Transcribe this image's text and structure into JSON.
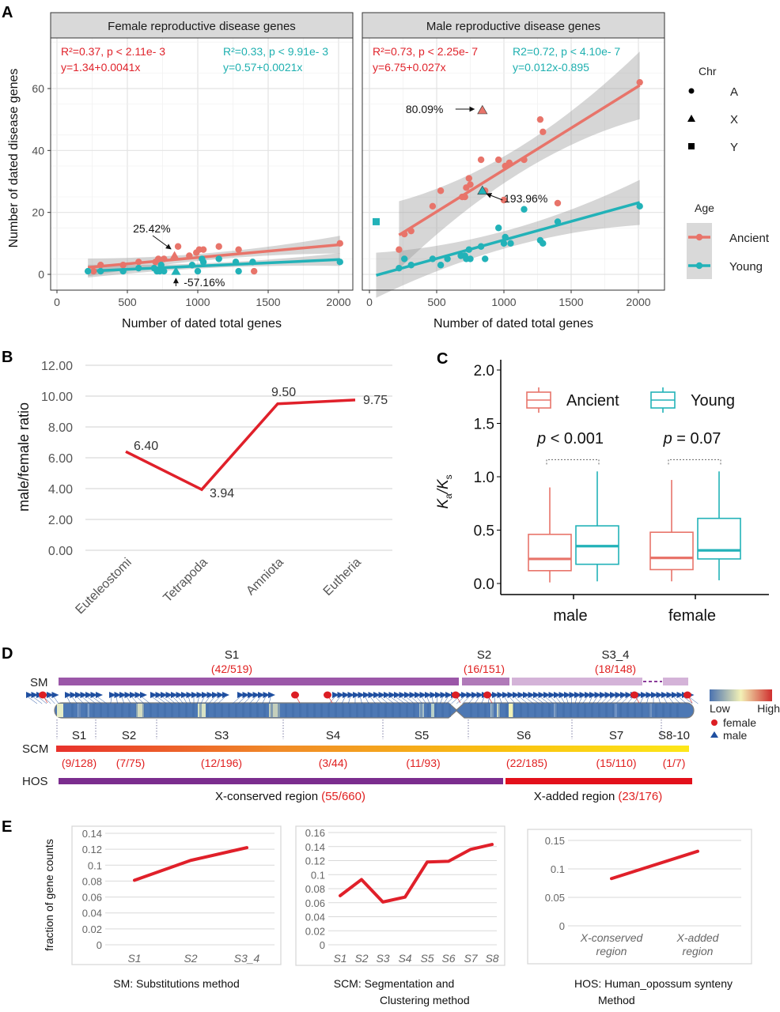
{
  "chart_data": [
    {
      "id": "A",
      "panel_label": "A",
      "type": "scatter",
      "xlabel": "Number of dated total genes",
      "ylabel": "Number of dated disease genes",
      "xlim": [
        0,
        2000
      ],
      "ylim": [
        0,
        60
      ],
      "xticks": [
        "0",
        "500",
        "1000",
        "1500",
        "2000"
      ],
      "yticks": [
        "0",
        "20",
        "40",
        "60"
      ],
      "grid": true,
      "legend": {
        "placement": "right",
        "chr_title": "Chr",
        "chr_items": [
          {
            "label": "A",
            "shape": "circle"
          },
          {
            "label": "X",
            "shape": "triangle"
          },
          {
            "label": "Y",
            "shape": "square"
          }
        ],
        "age_title": "Age",
        "age_items": [
          {
            "label": "Ancient",
            "color": "#e8746a"
          },
          {
            "label": "Young",
            "color": "#22b2b8"
          }
        ]
      },
      "facets": [
        {
          "title": "Female reproductive disease genes",
          "stats": [
            {
              "series": "Ancient",
              "line1": "R²=0.37, p < 2.11e- 3",
              "line2": "y=1.34+0.0041x",
              "color": "#e0242c"
            },
            {
              "series": "Young",
              "line1": "R²=0.33, p < 9.91e- 3",
              "line2": "y=0.57+0.0021x",
              "color": "#1fb0b0"
            }
          ],
          "annotations": [
            {
              "text": "25.42%",
              "target": [
                835,
                6
              ]
            },
            {
              "text": "-57.16%",
              "target": [
                845,
                1
              ]
            }
          ],
          "series": [
            {
              "name": "Ancient",
              "color": "#e8746a",
              "fit": {
                "intercept": 1.34,
                "slope": 0.0041,
                "x": [
                  220,
                  2010
                ]
              },
              "points": [
                [
                  260,
                  1
                ],
                [
                  310,
                  3
                ],
                [
                  470,
                  3
                ],
                [
                  580,
                  4
                ],
                [
                  700,
                  4
                ],
                [
                  720,
                  5
                ],
                [
                  760,
                  5
                ],
                [
                  860,
                  9
                ],
                [
                  940,
                  6
                ],
                [
                  990,
                  7
                ],
                [
                  1010,
                  8
                ],
                [
                  1040,
                  8
                ],
                [
                  1150,
                  9
                ],
                [
                  1290,
                  8
                ],
                [
                  1400,
                  1
                ],
                [
                  2010,
                  10
                ]
              ],
              "x_points": [
                [
                  835,
                  6
                ]
              ]
            },
            {
              "name": "Young",
              "color": "#22b2b8",
              "fit": {
                "intercept": 0.57,
                "slope": 0.0021,
                "x": [
                  220,
                  2010
                ]
              },
              "points": [
                [
                  220,
                  1
                ],
                [
                  310,
                  1
                ],
                [
                  470,
                  1
                ],
                [
                  580,
                  2
                ],
                [
                  690,
                  2
                ],
                [
                  710,
                  1
                ],
                [
                  730,
                  1
                ],
                [
                  740,
                  3
                ],
                [
                  760,
                  1
                ],
                [
                  960,
                  3
                ],
                [
                  1000,
                  1
                ],
                [
                  1030,
                  5
                ],
                [
                  1040,
                  4
                ],
                [
                  1150,
                  5
                ],
                [
                  1270,
                  4
                ],
                [
                  1290,
                  1
                ],
                [
                  1390,
                  4
                ],
                [
                  2010,
                  4
                ]
              ],
              "x_points": [
                [
                  845,
                  1
                ]
              ]
            }
          ]
        },
        {
          "title": "Male reproductive disease genes",
          "stats": [
            {
              "series": "Ancient",
              "line1": "R²=0.73, p < 2.25e- 7",
              "line2": "y=6.75+0.027x",
              "color": "#e0242c"
            },
            {
              "series": "Young",
              "line1": "R2=0.72, p < 4.10e- 7",
              "line2": "y=0.012x-0.895",
              "color": "#1fb0b0"
            }
          ],
          "annotations": [
            {
              "text": "80.09%",
              "target": [
                840,
                53
              ]
            },
            {
              "text": "193.96%",
              "target": [
                840,
                27
              ]
            }
          ],
          "series": [
            {
              "name": "Ancient",
              "color": "#e8746a",
              "fit": {
                "intercept": 6.75,
                "slope": 0.027,
                "x": [
                  220,
                  2010
                ]
              },
              "points": [
                [
                  220,
                  8
                ],
                [
                  260,
                  13
                ],
                [
                  310,
                  14
                ],
                [
                  470,
                  22
                ],
                [
                  530,
                  27
                ],
                [
                  690,
                  25
                ],
                [
                  710,
                  25
                ],
                [
                  720,
                  28
                ],
                [
                  740,
                  31
                ],
                [
                  750,
                  29
                ],
                [
                  830,
                  37
                ],
                [
                  860,
                  27
                ],
                [
                  960,
                  37
                ],
                [
                  1000,
                  24
                ],
                [
                  1010,
                  35
                ],
                [
                  1040,
                  36
                ],
                [
                  1150,
                  37
                ],
                [
                  1270,
                  50
                ],
                [
                  1290,
                  46
                ],
                [
                  1400,
                  23
                ],
                [
                  2010,
                  62
                ]
              ],
              "x_points": [
                [
                  840,
                  53
                ]
              ]
            },
            {
              "name": "Young",
              "color": "#22b2b8",
              "fit": {
                "intercept": -0.895,
                "slope": 0.012,
                "x": [
                  50,
                  2010
                ]
              },
              "points": [
                [
                  220,
                  2
                ],
                [
                  260,
                  5
                ],
                [
                  310,
                  3
                ],
                [
                  470,
                  5
                ],
                [
                  530,
                  3
                ],
                [
                  580,
                  5
                ],
                [
                  680,
                  6
                ],
                [
                  710,
                  6
                ],
                [
                  720,
                  5
                ],
                [
                  740,
                  8
                ],
                [
                  750,
                  5
                ],
                [
                  830,
                  9
                ],
                [
                  860,
                  5
                ],
                [
                  960,
                  15
                ],
                [
                  1000,
                  10
                ],
                [
                  1010,
                  12
                ],
                [
                  1050,
                  10
                ],
                [
                  1150,
                  21
                ],
                [
                  1270,
                  11
                ],
                [
                  1290,
                  10
                ],
                [
                  1400,
                  17
                ],
                [
                  2010,
                  22
                ]
              ],
              "x_points": [
                [
                  840,
                  27
                ]
              ],
              "y_points": [
                [
                  50,
                  17
                ]
              ]
            }
          ]
        }
      ]
    },
    {
      "id": "B",
      "panel_label": "B",
      "type": "line",
      "title": "",
      "xlabel": "",
      "ylabel": "male/female ratio",
      "categories": [
        "Euteleostomi",
        "Tetrapoda",
        "Amniota",
        "Eutheria"
      ],
      "values": [
        6.4,
        3.94,
        9.5,
        9.75
      ],
      "data_labels": [
        "6.40",
        "3.94",
        "9.50",
        "9.75"
      ],
      "ylim": [
        0,
        12
      ],
      "yticks": [
        "0.00",
        "2.00",
        "4.00",
        "6.00",
        "8.00",
        "10.00",
        "12.00"
      ],
      "grid": true,
      "color": "#e0202a"
    },
    {
      "id": "C",
      "panel_label": "C",
      "type": "box",
      "ylabel": "Ka/Ks",
      "ylabel_main1": "K",
      "ylabel_sub1": "a",
      "ylabel_main2": "/K",
      "ylabel_sub2": "s",
      "categories": [
        "male",
        "female"
      ],
      "ylim": [
        0,
        2.0
      ],
      "yticks": [
        "0.0",
        "0.5",
        "1.0",
        "1.5",
        "2.0"
      ],
      "legend": {
        "placement": "top",
        "items": [
          {
            "label": "Ancient",
            "color": "#e8746a"
          },
          {
            "label": "Young",
            "color": "#22b2b8"
          }
        ]
      },
      "pvalues": [
        {
          "italic": "p",
          "text": " < 0.001"
        },
        {
          "italic": "p",
          "text": " = 0.07"
        }
      ],
      "series": [
        {
          "name": "Ancient",
          "color": "#e8746a",
          "boxes": [
            {
              "min": 0.01,
              "q1": 0.12,
              "median": 0.23,
              "q3": 0.46,
              "max": 0.9
            },
            {
              "min": 0.02,
              "q1": 0.13,
              "median": 0.24,
              "q3": 0.48,
              "max": 0.97
            }
          ]
        },
        {
          "name": "Young",
          "color": "#22b2b8",
          "boxes": [
            {
              "min": 0.02,
              "q1": 0.18,
              "median": 0.35,
              "q3": 0.54,
              "max": 1.05
            },
            {
              "min": 0.03,
              "q1": 0.23,
              "median": 0.31,
              "q3": 0.61,
              "max": 1.05
            }
          ]
        }
      ]
    },
    {
      "id": "E1",
      "type": "line",
      "ylabel": "fraction of gene counts",
      "categories": [
        "S1",
        "S2",
        "S3_4"
      ],
      "values": [
        0.081,
        0.106,
        0.122
      ],
      "ylim": [
        0,
        0.14
      ],
      "yticks": [
        "0",
        "0.02",
        "0.04",
        "0.06",
        "0.08",
        "0.1",
        "0.12",
        "0.14"
      ],
      "caption": "SM: Substitutions method",
      "color": "#e0202a"
    },
    {
      "id": "E2",
      "type": "line",
      "categories": [
        "S1",
        "S2",
        "S3",
        "S4",
        "S5",
        "S6",
        "S7",
        "S8"
      ],
      "values": [
        0.07,
        0.093,
        0.061,
        0.068,
        0.118,
        0.119,
        0.136,
        0.143
      ],
      "ylim": [
        0,
        0.16
      ],
      "yticks": [
        "0",
        "0.02",
        "0.04",
        "0.06",
        "0.08",
        "0.1",
        "0.12",
        "0.14",
        "0.16"
      ],
      "caption_line1": "SCM: Segmentation and",
      "caption_line2": "Clustering method",
      "color": "#e0202a"
    },
    {
      "id": "E3",
      "type": "line",
      "categories": [
        "X-conserved region",
        "X-added region"
      ],
      "category_lines": [
        [
          "X-conserved",
          "region"
        ],
        [
          "X-added",
          "region"
        ]
      ],
      "values": [
        0.083,
        0.131
      ],
      "ylim": [
        0,
        0.15
      ],
      "yticks": [
        "0",
        "0.05",
        "0.1",
        "0.15"
      ],
      "caption_line1": "HOS: Human_opossum synteny",
      "caption_line2": "Method",
      "color": "#e0202a"
    }
  ],
  "panel_labels": {
    "A": "A",
    "B": "B",
    "C": "C",
    "D": "D",
    "E": "E"
  },
  "panel_d": {
    "rows": {
      "sm": "SM",
      "scm": "SCM",
      "hos": "HOS"
    },
    "sm_segments": [
      {
        "label": "S1",
        "count": "(42/519)",
        "color": "#9b57a8"
      },
      {
        "label": "S2",
        "count": "(16/151)",
        "color": "#b07ab8"
      },
      {
        "label": "S3_4",
        "count": "(18/148)",
        "color": "#d4b3d8"
      }
    ],
    "scm_segments": [
      {
        "label": "S1",
        "count": "(9/128)"
      },
      {
        "label": "S2",
        "count": "(7/75)"
      },
      {
        "label": "S3",
        "count": "(12/196)"
      },
      {
        "label": "S4",
        "count": "(3/44)"
      },
      {
        "label": "S5",
        "count": "(11/93)"
      },
      {
        "label": "S6",
        "count": "(22/185)"
      },
      {
        "label": "S7",
        "count": "(15/110)"
      },
      {
        "label": "S8-10",
        "count": "(1/7)"
      }
    ],
    "hos_segments": [
      {
        "label": "X-conserved region",
        "count": "(55/660)",
        "color": "#7b2d8e"
      },
      {
        "label": "X-added region",
        "count": "(23/176)",
        "color": "#e3101b"
      }
    ],
    "legend": {
      "low": "Low",
      "high": "High",
      "female": "female",
      "male": "male"
    },
    "count_color": "#e02020"
  }
}
